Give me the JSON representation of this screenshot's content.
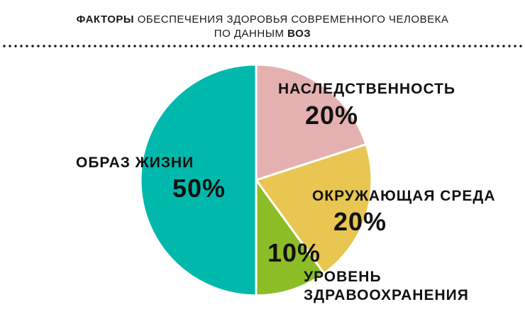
{
  "title": {
    "line1_bold": "ФАКТОРЫ",
    "line1_rest": "ОБЕСПЕЧЕНИЯ ЗДОРОВЬЯ СОВРЕМЕННОГО ЧЕЛОВЕКА",
    "line2_rest": "ПО ДАННЫМ",
    "line2_bold": "ВОЗ"
  },
  "chart_data": {
    "type": "pie",
    "title": "ФАКТОРЫ ОБЕСПЕЧЕНИЯ ЗДОРОВЬЯ СОВРЕМЕННОГО ЧЕЛОВЕКА ПО ДАННЫМ ВОЗ",
    "slices": [
      {
        "label": "НАСЛЕДСТВЕННОСТЬ",
        "value": 20,
        "value_label": "20%",
        "color": "#e5b1b0"
      },
      {
        "label": "ОКРУЖАЮЩАЯ СРЕДА",
        "value": 20,
        "value_label": "20%",
        "color": "#e8c651"
      },
      {
        "label": "УРОВЕНЬ ЗДРАВООХРАНЕНИЯ",
        "value": 10,
        "value_label": "10%",
        "color": "#8cbd27"
      },
      {
        "label": "ОБРАЗ ЖИЗНИ",
        "value": 50,
        "value_label": "50%",
        "color": "#00b9ac"
      }
    ],
    "labels_multiline": {
      "healthcare_line1": "УРОВЕНЬ",
      "healthcare_line2": "ЗДРАВООХРАНЕНИЯ"
    }
  }
}
